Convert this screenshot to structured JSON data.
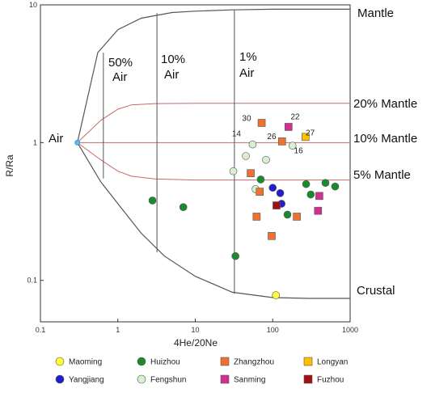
{
  "chart_data": {
    "type": "scatter",
    "title": "",
    "xlabel": "4He/20Ne",
    "ylabel": "R/Ra",
    "xscale": "log",
    "yscale": "log",
    "xlim": [
      0.1,
      1000
    ],
    "ylim": [
      0.05,
      10
    ],
    "x_ticks": [
      {
        "value": 0.1,
        "label": "0.1"
      },
      {
        "value": 1,
        "label": "1"
      },
      {
        "value": 10,
        "label": "10"
      },
      {
        "value": 100,
        "label": "100"
      },
      {
        "value": 1000,
        "label": "1000"
      }
    ],
    "y_ticks": [
      {
        "value": 0.1,
        "label": "0.1"
      },
      {
        "value": 1,
        "label": "1"
      },
      {
        "value": 10,
        "label": "10"
      }
    ],
    "mixing_lines": {
      "air_point": {
        "x": 0.3,
        "y": 1.0,
        "color": "#4fc3f7"
      },
      "mantle": {
        "x": [
          0.3,
          0.55,
          1,
          2,
          5,
          10,
          30,
          100,
          300,
          1000
        ],
        "y": [
          1.0,
          4.5,
          6.6,
          8.0,
          8.8,
          9.0,
          9.2,
          9.3,
          9.3,
          9.3
        ]
      },
      "crustal": {
        "x": [
          0.3,
          0.6,
          1,
          2,
          4,
          10,
          30,
          100,
          300,
          1000
        ],
        "y": [
          1.0,
          0.52,
          0.36,
          0.22,
          0.15,
          0.107,
          0.082,
          0.075,
          0.074,
          0.074
        ]
      },
      "mantle_20": {
        "x": [
          0.3,
          0.6,
          1,
          1.5,
          3,
          10,
          30,
          100,
          1000
        ],
        "y": [
          1.0,
          1.45,
          1.75,
          1.88,
          1.92,
          1.93,
          1.93,
          1.93,
          1.93
        ]
      },
      "mantle_10": {
        "x": [
          0.3,
          1000
        ],
        "y": [
          1.0,
          1.0
        ]
      },
      "mantle_5": {
        "x": [
          0.3,
          0.6,
          1,
          1.5,
          3,
          10,
          30,
          100,
          1000
        ],
        "y": [
          1.0,
          0.75,
          0.62,
          0.57,
          0.545,
          0.535,
          0.535,
          0.535,
          0.535
        ]
      },
      "air_50": {
        "x": 0.65,
        "y": [
          0.55,
          4.5
        ]
      },
      "air_10": {
        "x": 3.2,
        "y": [
          0.16,
          8.7
        ]
      },
      "air_1": {
        "x": 32,
        "y": [
          0.08,
          9.25
        ]
      }
    },
    "region_labels": {
      "mantle": "Mantle",
      "crustal": "Crustal",
      "air": "Air",
      "mantle_20": "20% Mantle",
      "mantle_10": "10% Mantle",
      "mantle_5": "5% Mantle",
      "air_50_pct": "50%",
      "air_50_word": "Air",
      "air_10_pct": "10%",
      "air_10_word": "Air",
      "air_1_pct": "1%",
      "air_1_word": "Air"
    },
    "series": [
      {
        "name": "Maoming",
        "color": "#ffff33",
        "shape": "circle",
        "points": [
          {
            "x": 110,
            "y": 0.078
          }
        ]
      },
      {
        "name": "Yangjiang",
        "color": "#1f1fd0",
        "shape": "circle",
        "points": [
          {
            "x": 100,
            "y": 0.47
          },
          {
            "x": 125,
            "y": 0.43
          },
          {
            "x": 130,
            "y": 0.36
          }
        ]
      },
      {
        "name": "Huizhou",
        "color": "#1a8a2e",
        "shape": "circle",
        "points": [
          {
            "x": 2.8,
            "y": 0.38
          },
          {
            "x": 7,
            "y": 0.34
          },
          {
            "x": 33,
            "y": 0.15
          },
          {
            "x": 70,
            "y": 0.54
          },
          {
            "x": 155,
            "y": 0.3
          },
          {
            "x": 270,
            "y": 0.5
          },
          {
            "x": 310,
            "y": 0.42
          },
          {
            "x": 480,
            "y": 0.51
          },
          {
            "x": 640,
            "y": 0.48
          }
        ]
      },
      {
        "name": "Fengshun",
        "color": "#d8f0d0",
        "shape": "circle",
        "points": [
          {
            "x": 31,
            "y": 0.62
          },
          {
            "x": 45,
            "y": 0.8
          },
          {
            "x": 55,
            "y": 0.97
          },
          {
            "x": 60,
            "y": 0.46
          },
          {
            "x": 82,
            "y": 0.75
          },
          {
            "x": 180,
            "y": 0.95
          }
        ]
      },
      {
        "name": "Zhangzhou",
        "color": "#f07030",
        "shape": "square",
        "points": [
          {
            "x": 52,
            "y": 0.6
          },
          {
            "x": 62,
            "y": 0.29
          },
          {
            "x": 68,
            "y": 0.44
          },
          {
            "x": 72,
            "y": 1.39
          },
          {
            "x": 97,
            "y": 0.21
          },
          {
            "x": 132,
            "y": 1.02
          },
          {
            "x": 205,
            "y": 0.29
          }
        ]
      },
      {
        "name": "Sanming",
        "color": "#d03090",
        "shape": "square",
        "points": [
          {
            "x": 160,
            "y": 1.3
          },
          {
            "x": 385,
            "y": 0.32
          },
          {
            "x": 400,
            "y": 0.41
          }
        ]
      },
      {
        "name": "Longyan",
        "color": "#ffc000",
        "shape": "square",
        "points": [
          {
            "x": 265,
            "y": 1.1
          }
        ]
      },
      {
        "name": "Fuzhou",
        "color": "#a01010",
        "shape": "square",
        "points": [
          {
            "x": 112,
            "y": 0.35
          }
        ]
      }
    ],
    "annotations": [
      {
        "text": "30",
        "x": 46,
        "y": 1.44
      },
      {
        "text": "22",
        "x": 195,
        "y": 1.48
      },
      {
        "text": "14",
        "x": 34,
        "y": 1.11
      },
      {
        "text": "26",
        "x": 97,
        "y": 1.06
      },
      {
        "text": "27",
        "x": 305,
        "y": 1.13
      },
      {
        "text": "16",
        "x": 215,
        "y": 0.84
      }
    ],
    "legend": {
      "placement": "bottom",
      "columns": 5
    }
  }
}
